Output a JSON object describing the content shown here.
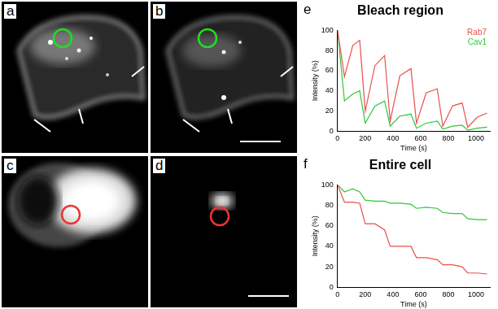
{
  "image_panels": [
    "a",
    "b",
    "c",
    "d"
  ],
  "chart_data": [
    {
      "type": "line",
      "title": "Bleach region",
      "annotations": [
        "e"
      ],
      "x_label": "Time (s)",
      "y_label": "Intensity (%)",
      "x": [
        0,
        50,
        110,
        160,
        200,
        270,
        340,
        380,
        450,
        530,
        570,
        640,
        720,
        760,
        830,
        900,
        940,
        1010,
        1080
      ],
      "series": [
        {
          "name": "Rab7",
          "color": "#e8504a",
          "values": [
            100,
            54,
            85,
            90,
            20,
            65,
            75,
            10,
            55,
            62,
            8,
            38,
            42,
            5,
            25,
            28,
            4,
            14,
            18
          ]
        },
        {
          "name": "Cav1",
          "color": "#2ec83a",
          "values": [
            100,
            30,
            37,
            40,
            8,
            25,
            30,
            5,
            15,
            17,
            3,
            8,
            10,
            2,
            5,
            6,
            1,
            3,
            4
          ]
        }
      ],
      "xlim": [
        0,
        1100
      ],
      "xticks": [
        0,
        200,
        400,
        600,
        800,
        1000
      ],
      "ylim": [
        0,
        100
      ],
      "yticks": [
        0,
        20,
        40,
        60,
        80,
        100
      ],
      "grid": false,
      "legend": "upper right"
    },
    {
      "type": "line",
      "title": "Entire cell",
      "annotations": [
        "f"
      ],
      "x_label": "Time (s)",
      "y_label": "Intensity (%)",
      "x": [
        0,
        50,
        110,
        160,
        200,
        270,
        340,
        380,
        450,
        530,
        570,
        640,
        720,
        760,
        830,
        900,
        940,
        1010,
        1080
      ],
      "series": [
        {
          "name": "Rab7",
          "color": "#e8504a",
          "values": [
            100,
            83,
            83,
            82,
            62,
            62,
            56,
            40,
            40,
            40,
            29,
            29,
            27,
            22,
            22,
            20,
            14,
            14,
            13
          ]
        },
        {
          "name": "Cav1",
          "color": "#2ec83a",
          "values": [
            100,
            93,
            96,
            93,
            85,
            84,
            84,
            82,
            82,
            81,
            77,
            78,
            77,
            73,
            72,
            72,
            67,
            66,
            66
          ]
        }
      ],
      "xlim": [
        0,
        1100
      ],
      "xticks": [
        0,
        200,
        400,
        600,
        800,
        1000
      ],
      "ylim": [
        0,
        100
      ],
      "yticks": [
        0,
        20,
        40,
        60,
        80,
        100
      ],
      "grid": false
    }
  ]
}
